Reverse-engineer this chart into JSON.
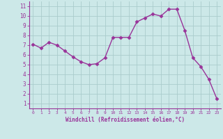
{
  "x": [
    0,
    1,
    2,
    3,
    4,
    5,
    6,
    7,
    8,
    9,
    10,
    11,
    12,
    13,
    14,
    15,
    16,
    17,
    18,
    19,
    20,
    21,
    22,
    23
  ],
  "y": [
    7.1,
    6.7,
    7.3,
    7.0,
    6.4,
    5.8,
    5.3,
    5.0,
    5.1,
    5.7,
    7.8,
    7.8,
    7.8,
    9.4,
    9.8,
    10.2,
    10.0,
    10.7,
    10.7,
    8.5,
    5.7,
    4.8,
    3.5,
    1.5
  ],
  "line_color": "#993399",
  "marker": "D",
  "marker_size": 2.5,
  "bg_color": "#cce8e8",
  "grid_color": "#aacccc",
  "xlabel": "Windchill (Refroidissement éolien,°C)",
  "xlabel_color": "#993399",
  "tick_color": "#993399",
  "ylim": [
    1,
    11
  ],
  "xlim": [
    0,
    23
  ],
  "yticks": [
    1,
    2,
    3,
    4,
    5,
    6,
    7,
    8,
    9,
    10,
    11
  ],
  "xticks": [
    0,
    1,
    2,
    3,
    4,
    5,
    6,
    7,
    8,
    9,
    10,
    11,
    12,
    13,
    14,
    15,
    16,
    17,
    18,
    19,
    20,
    21,
    22,
    23
  ],
  "spine_color": "#993399",
  "line_width": 1.0
}
